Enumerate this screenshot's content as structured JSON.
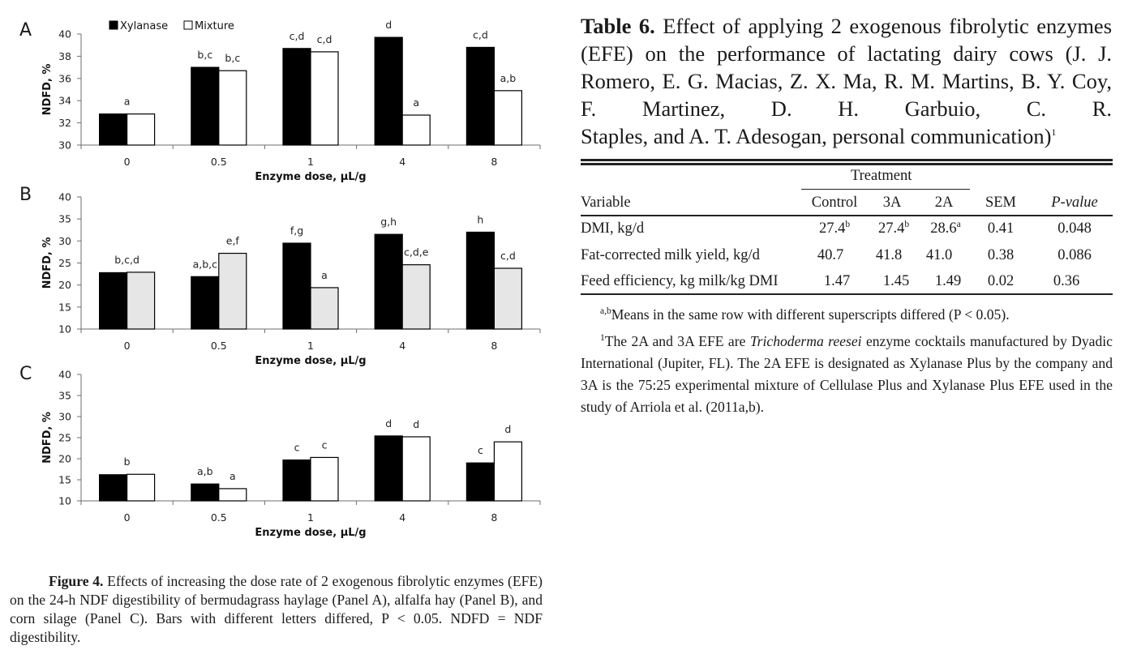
{
  "figure": {
    "caption_label": "Figure 4.",
    "caption_text": "Effects of increasing the dose rate of 2 exogenous fibrolytic enzymes (EFE) on the 24-h NDF digestibility of bermudagrass haylage (Panel A), alfalfa hay (Panel B), and corn silage (Panel C). Bars with different letters differed, P < 0.05. NDFD = NDF digestibility."
  },
  "chart_data": [
    {
      "type": "bar",
      "panel": "A",
      "legend": [
        "Xylanase",
        "Mixture"
      ],
      "categories": [
        "0",
        "0.5",
        "1",
        "4",
        "8"
      ],
      "xlabel": "Enzyme dose, µL/g",
      "ylabel": "NDFD, %",
      "ylim": [
        30,
        40
      ],
      "yticks": [
        "30",
        "32",
        "34",
        "36",
        "38",
        "40"
      ],
      "series": [
        {
          "name": "Xylanase",
          "values": [
            32.8,
            37.0,
            38.7,
            39.7,
            38.8
          ],
          "colors": [
            "#000000"
          ]
        },
        {
          "name": "Mixture",
          "values": [
            32.8,
            36.7,
            38.4,
            32.7,
            34.9
          ],
          "colors": [
            "#ffffff"
          ]
        }
      ],
      "labels": [
        {
          "category": "0",
          "text": "a",
          "series": "both"
        },
        {
          "category": "0.5",
          "text": "b,c",
          "series": 0
        },
        {
          "category": "0.5",
          "text": "b,c",
          "series": 1
        },
        {
          "category": "1",
          "text": "c,d",
          "series": 0
        },
        {
          "category": "1",
          "text": "c,d",
          "series": 1
        },
        {
          "category": "4",
          "text": "d",
          "series": 0
        },
        {
          "category": "4",
          "text": "a",
          "series": 1
        },
        {
          "category": "8",
          "text": "c,d",
          "series": 0
        },
        {
          "category": "8",
          "text": "a,b",
          "series": 1
        }
      ]
    },
    {
      "type": "bar",
      "panel": "B",
      "categories": [
        "0",
        "0.5",
        "1",
        "4",
        "8"
      ],
      "xlabel": "Enzyme dose, µL/g",
      "ylabel": "NDFD, %",
      "ylim": [
        10,
        40
      ],
      "yticks": [
        "10",
        "15",
        "20",
        "25",
        "30",
        "35",
        "40"
      ],
      "series": [
        {
          "name": "Xylanase",
          "values": [
            22.8,
            21.9,
            29.5,
            31.5,
            32.0
          ],
          "colors": [
            "#000000"
          ]
        },
        {
          "name": "Mixture",
          "values": [
            22.9,
            27.2,
            19.4,
            24.6,
            23.8
          ],
          "colors": [
            "#e6e6e6"
          ]
        }
      ],
      "labels": [
        {
          "category": "0",
          "text": "b,c,d",
          "series": "both"
        },
        {
          "category": "0.5",
          "text": "a,b,c",
          "series": 0
        },
        {
          "category": "0.5",
          "text": "e,f",
          "series": 1
        },
        {
          "category": "1",
          "text": "f,g",
          "series": 0
        },
        {
          "category": "1",
          "text": "a",
          "series": 1
        },
        {
          "category": "4",
          "text": "g,h",
          "series": 0
        },
        {
          "category": "4",
          "text": "c,d,e",
          "series": 1
        },
        {
          "category": "8",
          "text": "h",
          "series": 0
        },
        {
          "category": "8",
          "text": "c,d",
          "series": 1
        }
      ]
    },
    {
      "type": "bar",
      "panel": "C",
      "categories": [
        "0",
        "0.5",
        "1",
        "4",
        "8"
      ],
      "xlabel": "Enzyme dose, µL/g",
      "ylabel": "NDFD, %",
      "ylim": [
        10,
        40
      ],
      "yticks": [
        "10",
        "15",
        "20",
        "25",
        "30",
        "35",
        "40"
      ],
      "series": [
        {
          "name": "Xylanase",
          "values": [
            16.2,
            14.0,
            19.7,
            25.4,
            19.0
          ],
          "colors": [
            "#000000"
          ]
        },
        {
          "name": "Mixture",
          "values": [
            16.3,
            12.9,
            20.3,
            25.2,
            24.0
          ],
          "colors": [
            "#ffffff"
          ]
        }
      ],
      "labels": [
        {
          "category": "0",
          "text": "b",
          "series": "both"
        },
        {
          "category": "0.5",
          "text": "a,b",
          "series": 0
        },
        {
          "category": "0.5",
          "text": "a",
          "series": 1
        },
        {
          "category": "1",
          "text": "c",
          "series": 0
        },
        {
          "category": "1",
          "text": "c",
          "series": 1
        },
        {
          "category": "4",
          "text": "d",
          "series": 0
        },
        {
          "category": "4",
          "text": "d",
          "series": 1
        },
        {
          "category": "8",
          "text": "c",
          "series": 0
        },
        {
          "category": "8",
          "text": "d",
          "series": 1
        }
      ]
    }
  ],
  "table": {
    "title_label": "Table 6.",
    "title_line1": "Effect of applying 2 exogenous fibrolytic",
    "title_line2": "enzymes (EFE) on the performance of lactating dairy",
    "title_line3": "cows (J. J. Romero, E. G. Macias, Z. X. Ma, R. M.",
    "title_line4": "Martins, B. Y. Coy, F. Martinez, D. H. Garbuio, C. R.",
    "title_line5": "Staples, and A. T. Adesogan, personal communication)",
    "title_sup": "1",
    "group_header": "Treatment",
    "columns": [
      "Variable",
      "Control",
      "3A",
      "2A",
      "SEM",
      "P-value"
    ],
    "rows": [
      {
        "variable": "DMI, kg/d",
        "control": "27.4",
        "control_sup": "b",
        "a3": "27.4",
        "a3_sup": "b",
        "a2": "28.6",
        "a2_sup": "a",
        "sem": "0.41",
        "p": "0.048"
      },
      {
        "variable": "Fat-corrected milk yield, kg/d",
        "control": "40.7",
        "control_sup": "",
        "a3": "41.8",
        "a3_sup": "",
        "a2": "41.0",
        "a2_sup": "",
        "sem": "0.38",
        "p": "0.086"
      },
      {
        "variable": "Feed efficiency, kg milk/kg DMI",
        "control": "1.47",
        "control_sup": "",
        "a3": "1.45",
        "a3_sup": "",
        "a2": "1.49",
        "a2_sup": "",
        "sem": "0.02",
        "p": "0.36"
      }
    ],
    "footnote1_sup": "a,b",
    "footnote1": "Means in the same row with different superscripts differed (P < 0.05).",
    "footnote2_sup": "1",
    "footnote2_a": "The 2A and 3A EFE are",
    "footnote2_italic": "Trichoderma reesei",
    "footnote2_b": "enzyme cocktails manufactured by Dyadic International (Jupiter, FL). The 2A EFE is designated as Xylanase Plus by the company and 3A is the 75:25 experimental mixture of Cellulase Plus and Xylanase Plus EFE used in the study of Arriola et al. (2011a,b)."
  }
}
